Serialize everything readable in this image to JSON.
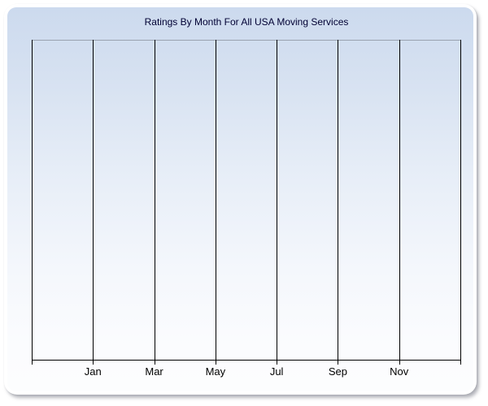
{
  "window": {
    "page_background": "#ffffff"
  },
  "panel": {
    "border_color": "#ffffff",
    "background_top": "#ccdaee",
    "background_bottom": "#fcfdfe"
  },
  "chart_data": {
    "type": "line",
    "title": "Ratings By Month For All USA Moving Services",
    "title_color": "#000033",
    "xlabel": "",
    "ylabel": "",
    "categories": [
      "Jan",
      "Mar",
      "May",
      "Jul",
      "Sep",
      "Nov"
    ],
    "series": [],
    "x_gridline_count": 8,
    "x_tick_labels_under_gridlines": [
      2,
      3,
      4,
      5,
      6,
      7
    ],
    "y_tick_labels": [],
    "grid": "vertical-only",
    "legend": "none",
    "gridline_color": "#000000",
    "axis_color": "#000000",
    "plot_top_border_color": "#9aa2b0",
    "tick_label_color": "#000000"
  }
}
